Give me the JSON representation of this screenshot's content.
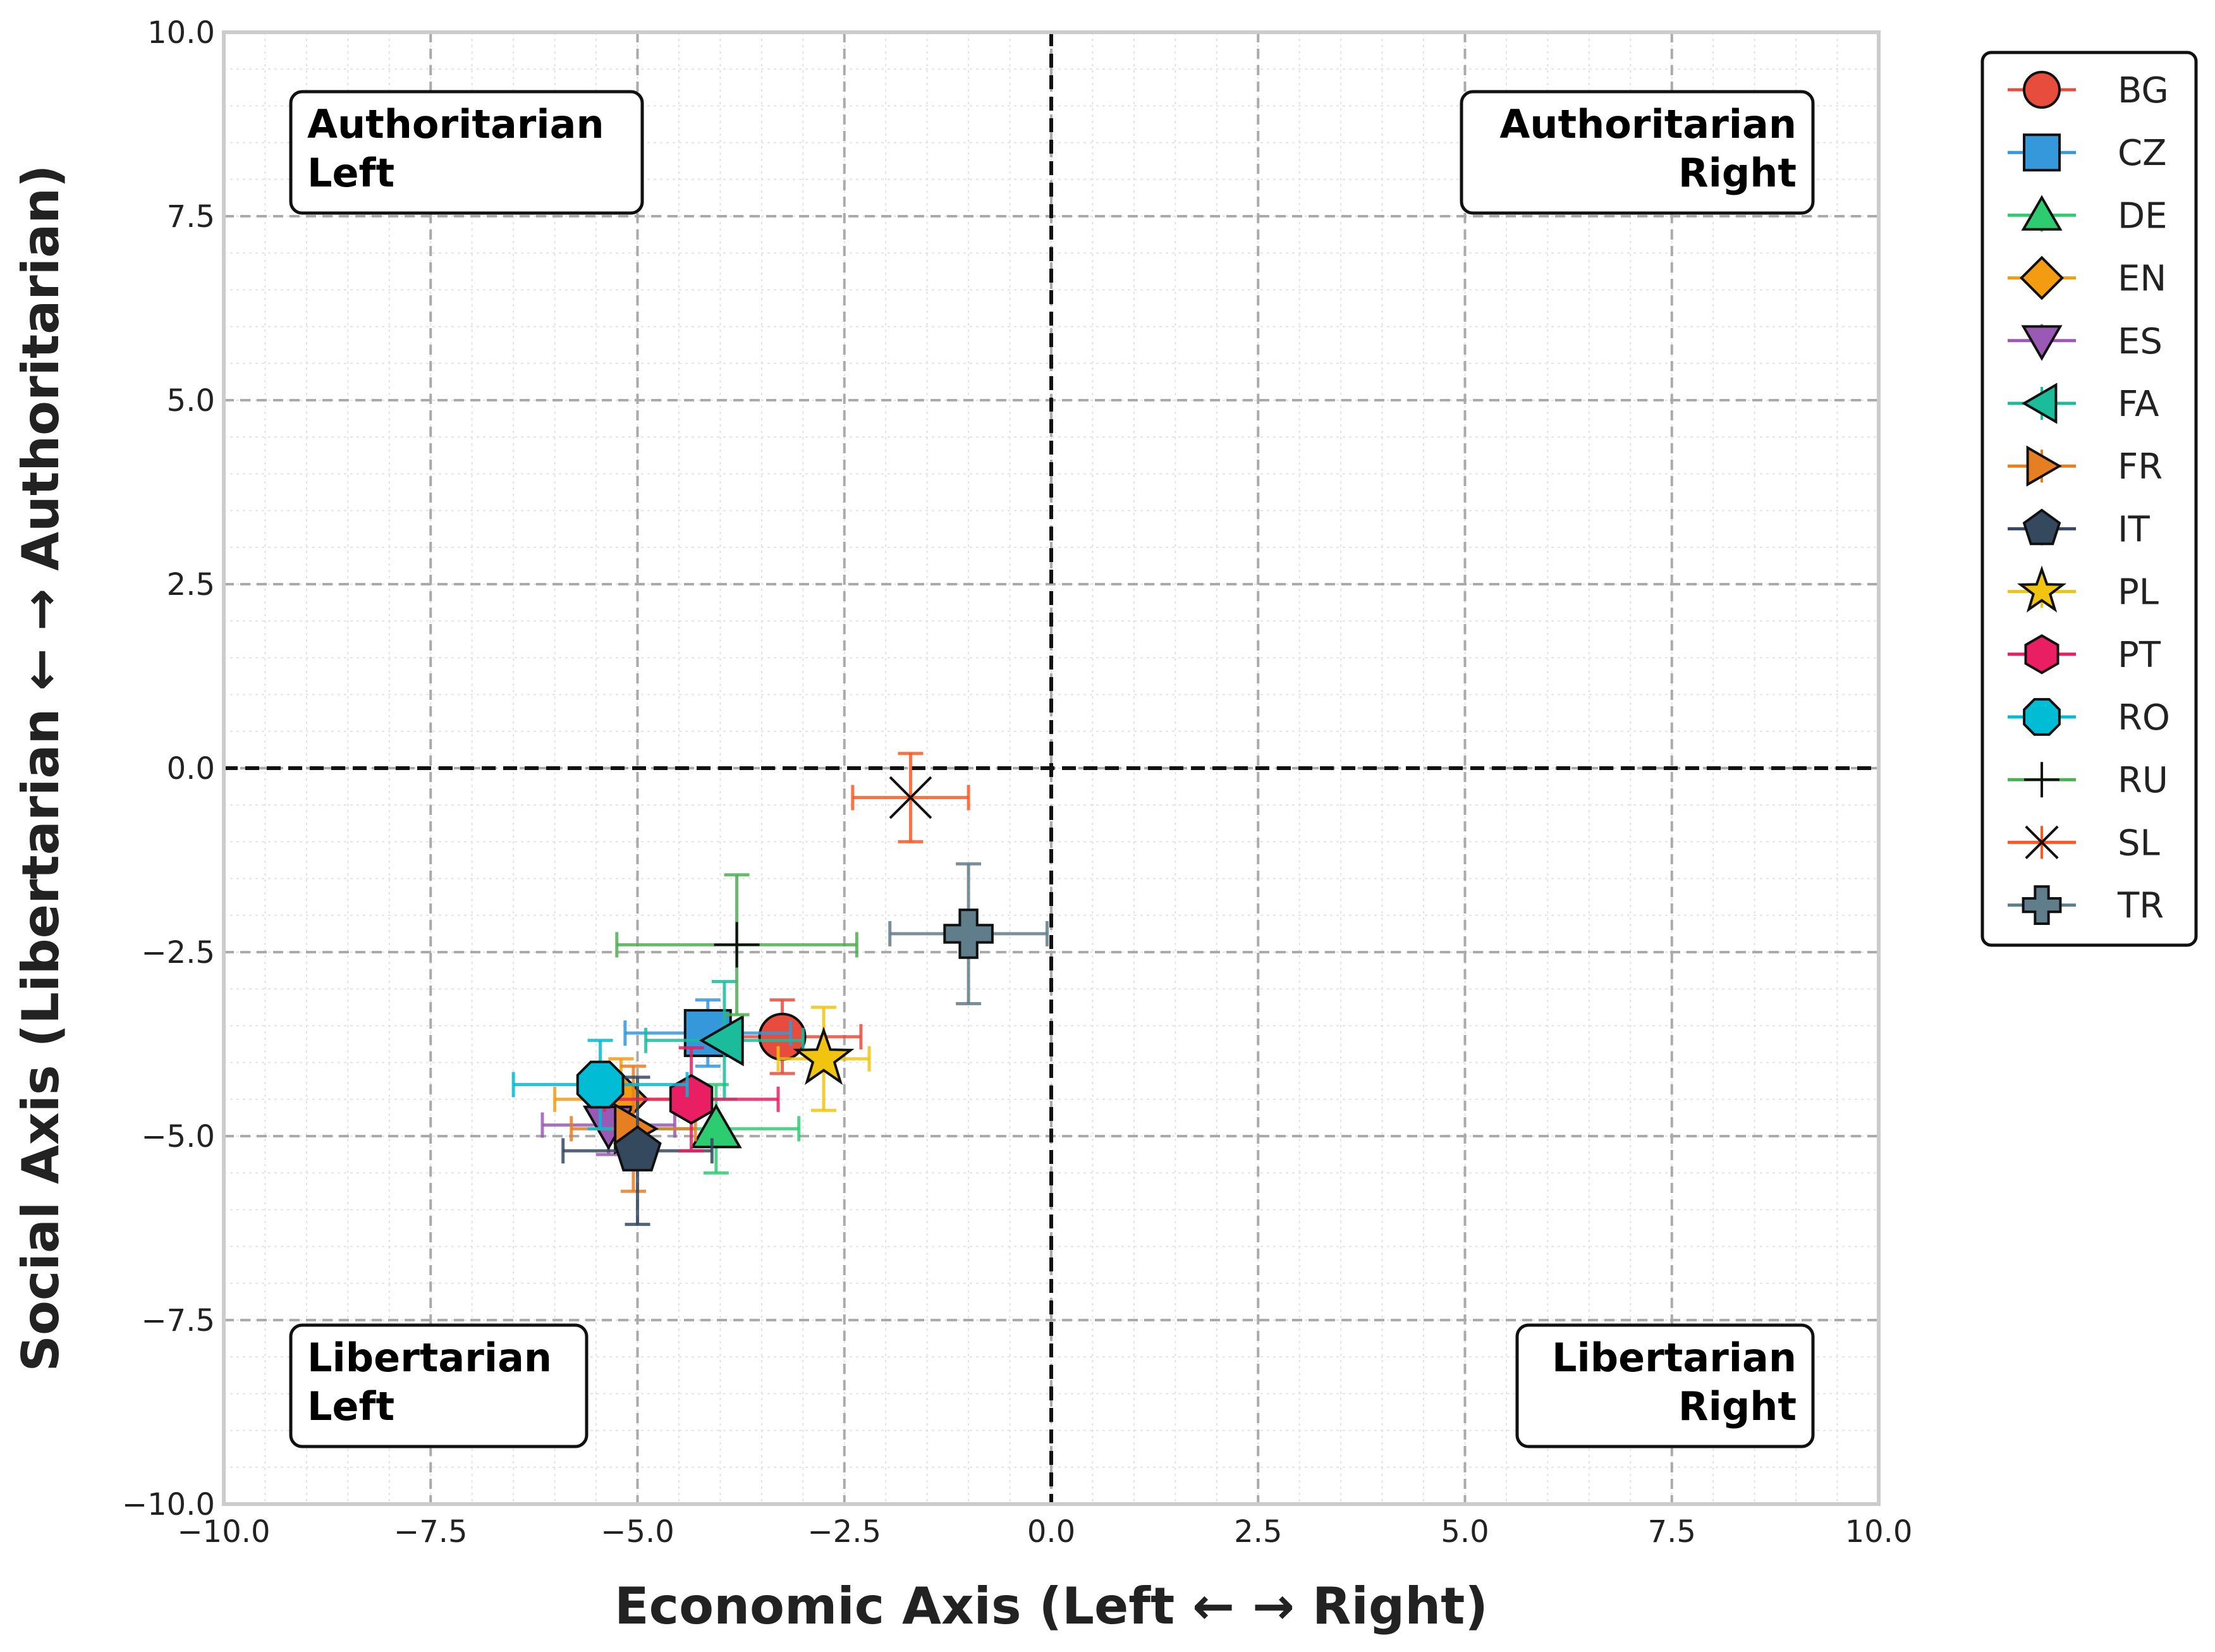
{
  "chart_data": {
    "type": "scatter",
    "title": "",
    "xlabel": "Economic Axis (Left ← → Right)",
    "ylabel": "Social Axis (Libertarian ← → Authoritarian)",
    "xlim": [
      -10,
      10
    ],
    "ylim": [
      -10,
      10
    ],
    "xticks": [
      -10,
      -7.5,
      -5,
      -2.5,
      0,
      2.5,
      5,
      7.5,
      10
    ],
    "yticks": [
      -10,
      -7.5,
      -5,
      -2.5,
      0,
      2.5,
      5,
      7.5,
      10
    ],
    "xtick_labels": [
      "−10.0",
      "−7.5",
      "−5.0",
      "−2.5",
      "0.0",
      "2.5",
      "5.0",
      "7.5",
      "10.0"
    ],
    "ytick_labels": [
      "−10.0",
      "−7.5",
      "−5.0",
      "−2.5",
      "0.0",
      "2.5",
      "5.0",
      "7.5",
      "10.0"
    ],
    "grid": true,
    "legend_position": "outside-top-right",
    "quadrant_labels": {
      "top_left": [
        "Authoritarian",
        "Left"
      ],
      "top_right": [
        "Authoritarian",
        "Right"
      ],
      "bottom_left": [
        "Libertarian",
        "Left"
      ],
      "bottom_right": [
        "Libertarian",
        "Right"
      ]
    },
    "series": [
      {
        "name": "BG",
        "x": -3.25,
        "y": -3.65,
        "xerr": 0.95,
        "yerr": 0.5,
        "marker": "circle",
        "color": "#e74c3c"
      },
      {
        "name": "CZ",
        "x": -4.15,
        "y": -3.6,
        "xerr": 1.0,
        "yerr": 0.45,
        "marker": "square",
        "color": "#3498db"
      },
      {
        "name": "DE",
        "x": -4.05,
        "y": -4.9,
        "xerr": 1.0,
        "yerr": 0.6,
        "marker": "triangle-up",
        "color": "#2ecc71"
      },
      {
        "name": "EN",
        "x": -5.2,
        "y": -4.5,
        "xerr": 0.8,
        "yerr": 0.55,
        "marker": "diamond",
        "color": "#f39c12"
      },
      {
        "name": "ES",
        "x": -5.35,
        "y": -4.85,
        "xerr": 0.8,
        "yerr": 0.4,
        "marker": "triangle-down",
        "color": "#9b59b6"
      },
      {
        "name": "FA",
        "x": -3.95,
        "y": -3.7,
        "xerr": 0.95,
        "yerr": 0.8,
        "marker": "triangle-left",
        "color": "#1abc9c"
      },
      {
        "name": "FR",
        "x": -5.05,
        "y": -4.9,
        "xerr": 0.75,
        "yerr": 0.85,
        "marker": "triangle-right",
        "color": "#e67e22"
      },
      {
        "name": "IT",
        "x": -5.0,
        "y": -5.2,
        "xerr": 0.9,
        "yerr": 1.0,
        "marker": "pentagon",
        "color": "#34495e"
      },
      {
        "name": "PL",
        "x": -2.75,
        "y": -3.95,
        "xerr": 0.55,
        "yerr": 0.7,
        "marker": "star",
        "color": "#f1c40f"
      },
      {
        "name": "PT",
        "x": -4.35,
        "y": -4.5,
        "xerr": 1.05,
        "yerr": 0.7,
        "marker": "hexagon",
        "color": "#e91e63"
      },
      {
        "name": "RO",
        "x": -5.45,
        "y": -4.3,
        "xerr": 1.05,
        "yerr": 0.6,
        "marker": "octagon",
        "color": "#00bcd4"
      },
      {
        "name": "RU",
        "x": -3.8,
        "y": -2.4,
        "xerr": 1.45,
        "yerr": 0.95,
        "marker": "plus",
        "color": "#4caf50"
      },
      {
        "name": "SL",
        "x": -1.7,
        "y": -0.4,
        "xerr": 0.7,
        "yerr": 0.6,
        "marker": "x",
        "color": "#ff5722"
      },
      {
        "name": "TR",
        "x": -1.0,
        "y": -2.25,
        "xerr": 0.95,
        "yerr": 0.95,
        "marker": "plus-filled",
        "color": "#607d8b"
      }
    ]
  }
}
